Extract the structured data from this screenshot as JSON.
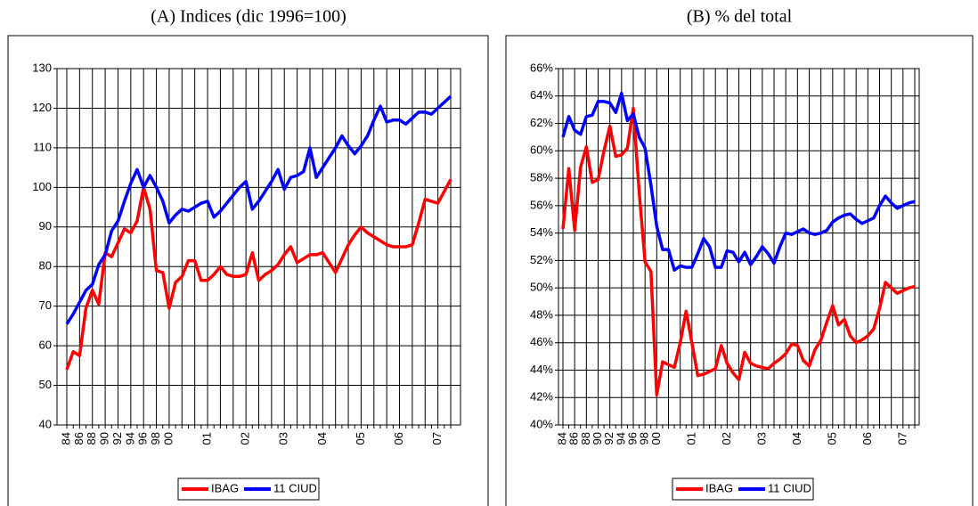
{
  "chart_data": [
    {
      "type": "line",
      "title": "(A) Indices (dic 1996=100)",
      "categories": [
        "84",
        null,
        "86",
        null,
        "88",
        null,
        "90",
        null,
        "92",
        null,
        "94",
        null,
        "96",
        null,
        "98",
        null,
        "00",
        null,
        null,
        null,
        null,
        null,
        "01",
        null,
        null,
        null,
        null,
        null,
        "02",
        null,
        null,
        null,
        null,
        null,
        "03",
        null,
        null,
        null,
        null,
        null,
        "04",
        null,
        null,
        null,
        null,
        null,
        "05",
        null,
        null,
        null,
        null,
        null,
        "06",
        null,
        null,
        null,
        null,
        null,
        "07",
        null,
        null
      ],
      "series": [
        {
          "name": "IBAG",
          "color": "#ff0000",
          "values": [
            54,
            58.5,
            57.5,
            69.5,
            74,
            70.5,
            83.5,
            82.5,
            86,
            89.5,
            88.5,
            91.5,
            100,
            94.5,
            79,
            78.5,
            69.5,
            76,
            77.5,
            81.5,
            81.5,
            76.5,
            76.5,
            78,
            80,
            78,
            77.5,
            77.5,
            78,
            83.5,
            76.5,
            78,
            79,
            80.5,
            83,
            85,
            81,
            82,
            83,
            83,
            83.5,
            81,
            78.5,
            82,
            85.5,
            88,
            90,
            88.5,
            87.5,
            86.5,
            85.5,
            85,
            85,
            85,
            85.5,
            91,
            97,
            96.5,
            96,
            99,
            102
          ]
        },
        {
          "name": "11 CIUD",
          "color": "#0000ff",
          "values": [
            65.5,
            68,
            71,
            74,
            75.5,
            80.5,
            83,
            89,
            91.5,
            96.5,
            101,
            104.5,
            100,
            103,
            100,
            96.5,
            91,
            93,
            94.5,
            94,
            95,
            96,
            96.5,
            92.5,
            94,
            96,
            98,
            100,
            101.5,
            94.5,
            96.5,
            99,
            101.5,
            104.5,
            99.5,
            102.5,
            103,
            104,
            110,
            102.5,
            105,
            107.5,
            110,
            113,
            110.5,
            108.5,
            110.5,
            113,
            117,
            120.5,
            116.5,
            117,
            117,
            116,
            117.5,
            119,
            119,
            118.5,
            120,
            121.5,
            123
          ]
        }
      ],
      "ylim": [
        40,
        130
      ],
      "yticks": [
        40,
        50,
        60,
        70,
        80,
        90,
        100,
        110,
        120,
        130
      ],
      "grid": true,
      "legend": "bottom"
    },
    {
      "type": "line",
      "title": "(B) % del total",
      "categories": [
        "84",
        null,
        "86",
        null,
        "88",
        null,
        "90",
        null,
        "92",
        null,
        "94",
        null,
        "96",
        null,
        "98",
        null,
        "00",
        null,
        null,
        null,
        null,
        null,
        "01",
        null,
        null,
        null,
        null,
        null,
        "02",
        null,
        null,
        null,
        null,
        null,
        "03",
        null,
        null,
        null,
        null,
        null,
        "04",
        null,
        null,
        null,
        null,
        null,
        "05",
        null,
        null,
        null,
        null,
        null,
        "06",
        null,
        null,
        null,
        null,
        null,
        "07",
        null,
        null
      ],
      "series": [
        {
          "name": "IBAG",
          "color": "#ff0000",
          "values": [
            54.3,
            58.7,
            54.2,
            58.8,
            60.3,
            57.7,
            57.9,
            60,
            61.8,
            59.6,
            59.7,
            60.2,
            63.1,
            57,
            51.9,
            51.2,
            42.2,
            44.6,
            44.4,
            44.2,
            46,
            48.3,
            46,
            43.6,
            43.7,
            43.9,
            44.1,
            45.8,
            44.5,
            43.8,
            43.3,
            45.3,
            44.5,
            44.3,
            44.2,
            44.1,
            44.5,
            44.8,
            45.2,
            45.9,
            45.8,
            44.7,
            44.3,
            45.5,
            46.2,
            47.5,
            48.7,
            47.3,
            47.7,
            46.5,
            46,
            46.2,
            46.5,
            47,
            48.5,
            50.4,
            50,
            49.6,
            49.8,
            50,
            50.1
          ]
        },
        {
          "name": "11 CIUD",
          "color": "#0000ff",
          "values": [
            61,
            62.5,
            61.5,
            61.2,
            62.5,
            62.6,
            63.6,
            63.6,
            63.5,
            62.8,
            64.2,
            62.2,
            62.7,
            61,
            60.2,
            57.5,
            54.5,
            52.8,
            52.8,
            51.3,
            51.6,
            51.5,
            51.5,
            52.5,
            53.6,
            53,
            51.5,
            51.5,
            52.7,
            52.6,
            51.9,
            52.6,
            51.7,
            52.3,
            53,
            52.5,
            51.8,
            53,
            54,
            53.9,
            54.1,
            54.3,
            54,
            53.9,
            54,
            54.2,
            54.8,
            55.1,
            55.3,
            55.4,
            55,
            54.7,
            54.9,
            55.1,
            56,
            56.7,
            56.2,
            55.8,
            56,
            56.2,
            56.3
          ]
        }
      ],
      "ylim": [
        40,
        66
      ],
      "yticks": [
        {
          "value": 40,
          "label": "40%"
        },
        {
          "value": 42,
          "label": "42%"
        },
        {
          "value": 44,
          "label": "44%"
        },
        {
          "value": 46,
          "label": "46%"
        },
        {
          "value": 48,
          "label": "48%"
        },
        {
          "value": 50,
          "label": "50%"
        },
        {
          "value": 52,
          "label": "52%"
        },
        {
          "value": 54,
          "label": "54%"
        },
        {
          "value": 56,
          "label": "56%"
        },
        {
          "value": 58,
          "label": "58%"
        },
        {
          "value": 60,
          "label": "60%"
        },
        {
          "value": 62,
          "label": "62%"
        },
        {
          "value": 64,
          "label": "64%"
        },
        {
          "value": 66,
          "label": "66%"
        }
      ],
      "grid": true,
      "legend": "bottom"
    }
  ]
}
